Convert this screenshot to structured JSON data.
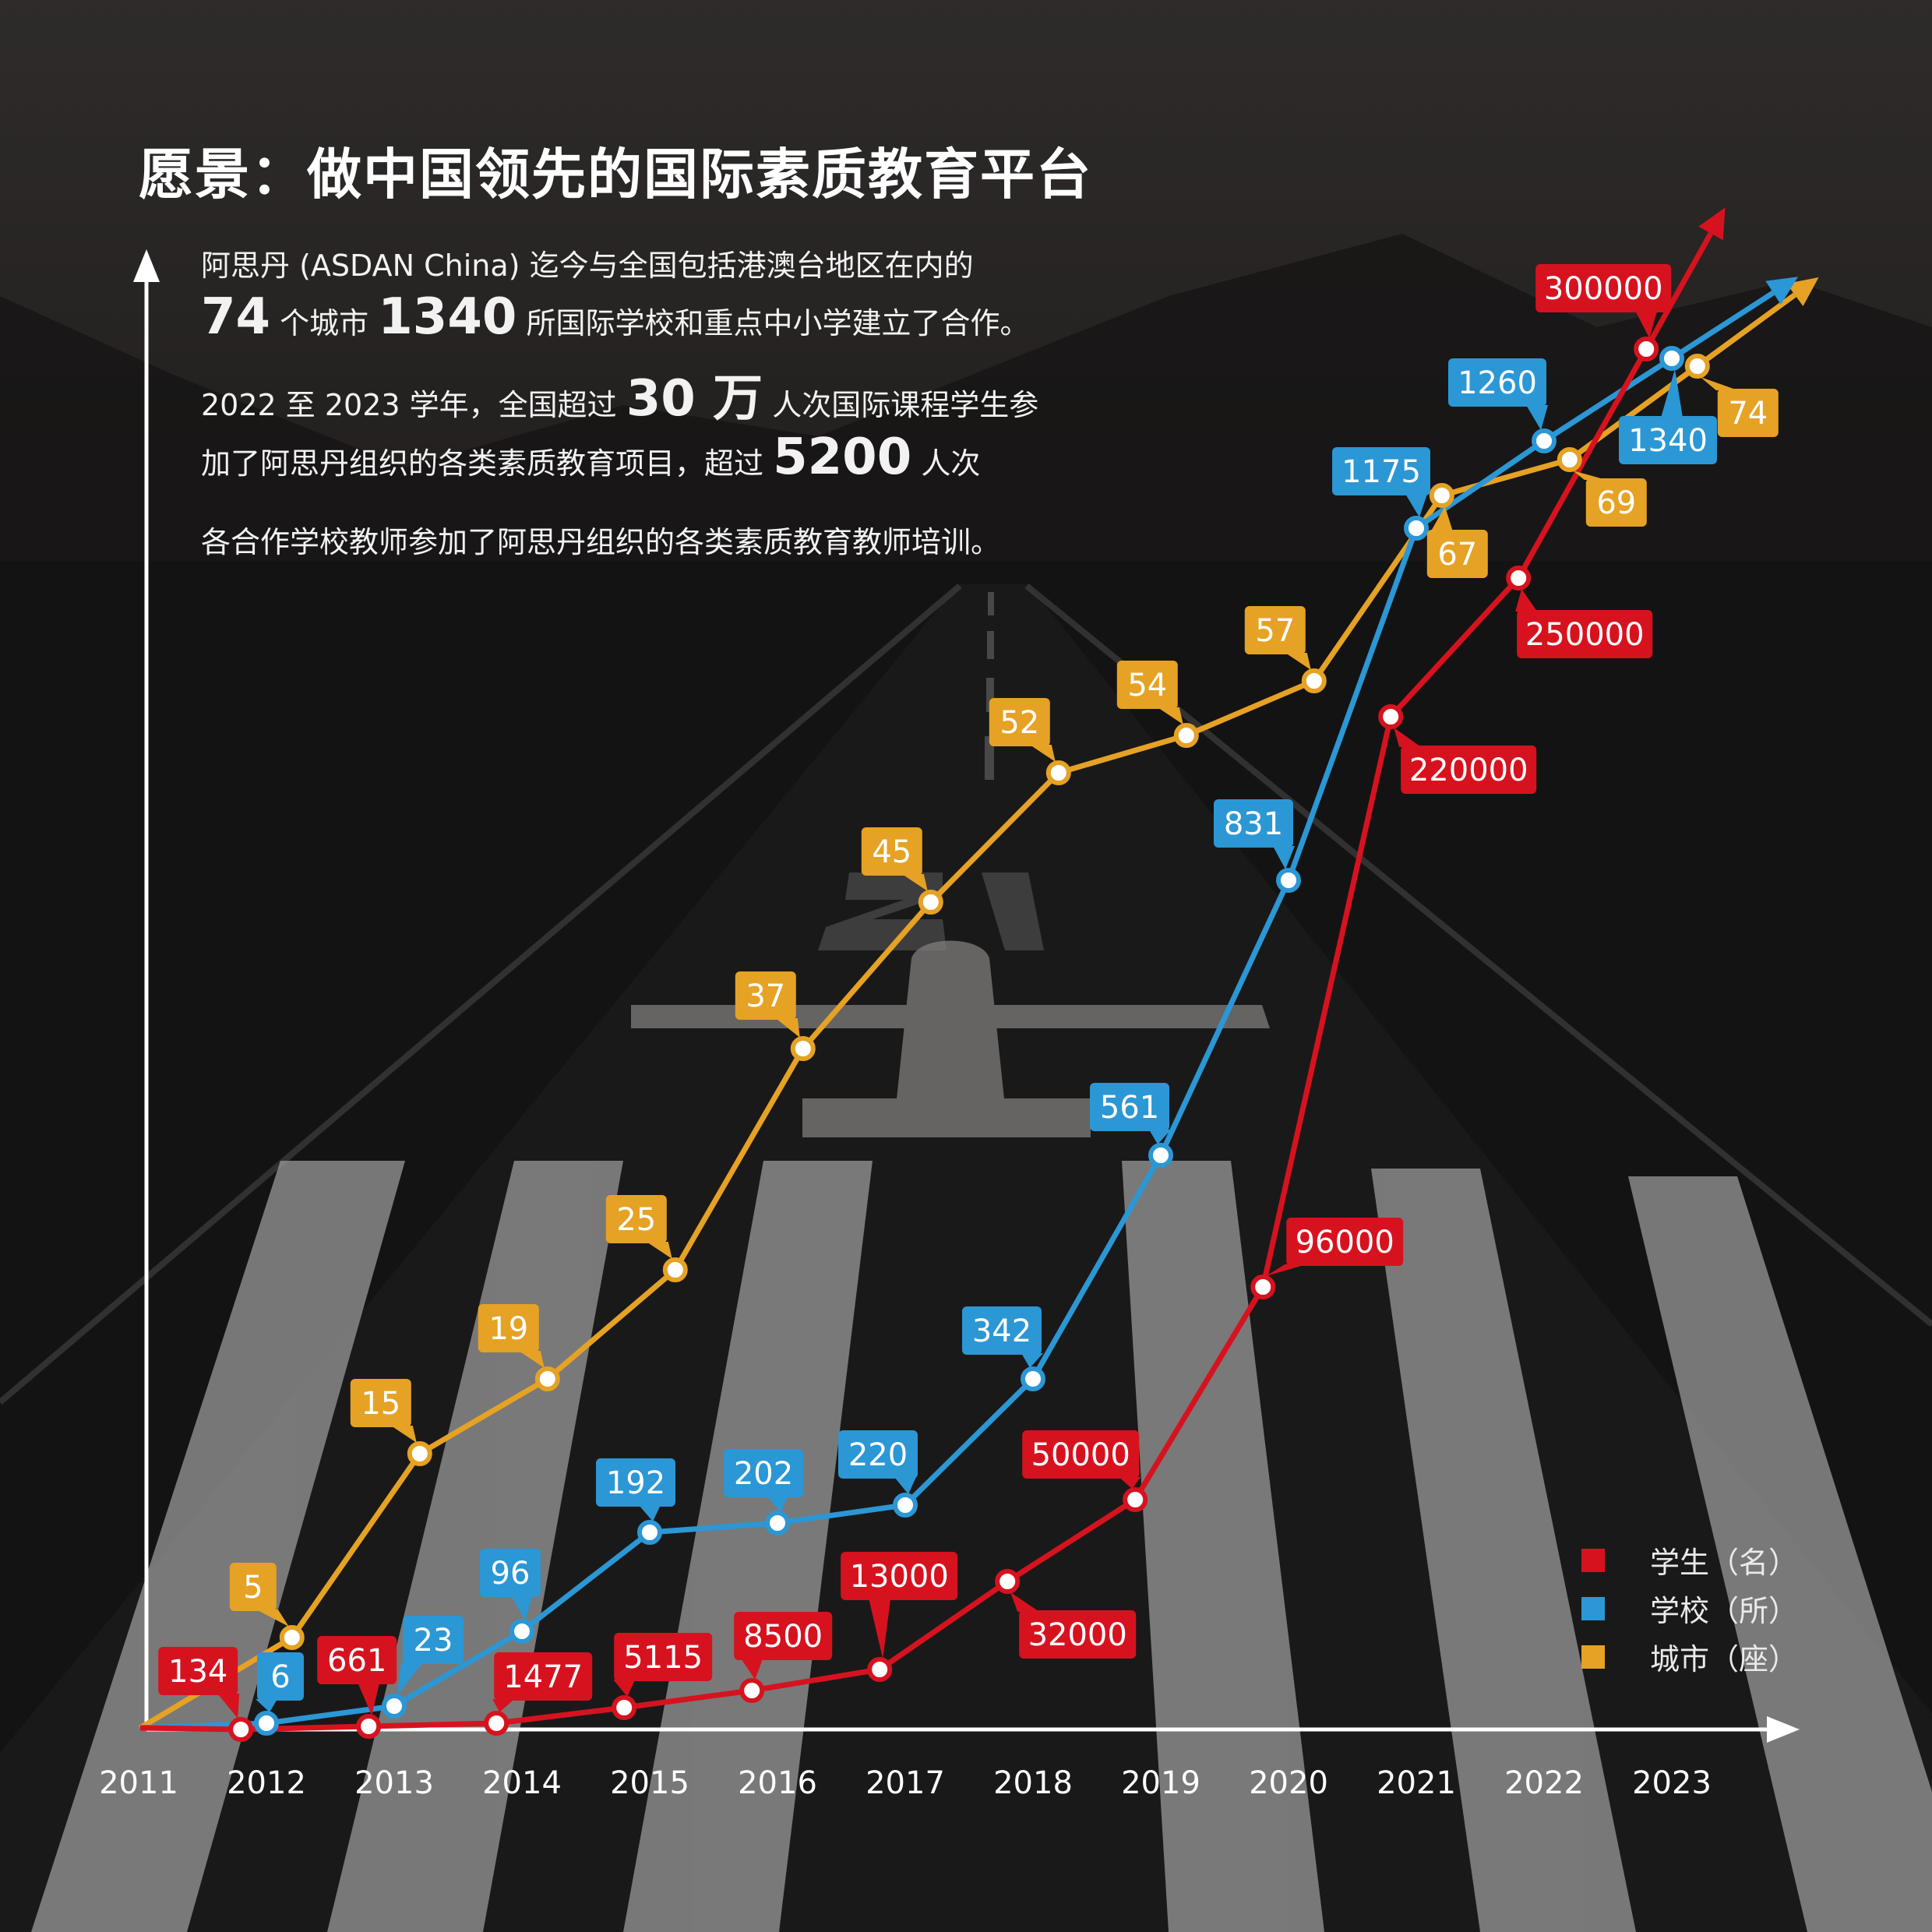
{
  "title": "愿景：做中国领先的国际素质教育平台",
  "intro": {
    "line1": "阿思丹 (ASDAN China) 迄今与全国包括港澳台地区在内的",
    "line2": {
      "n1": "74",
      "t1": "个城市",
      "n2": "1340",
      "t2": "所国际学校和重点中小学建立了合作。"
    },
    "line3": {
      "t1": "2022 至 2023 学年，全国超过",
      "n1": "30 万",
      "t2": "人次国际课程学生参"
    },
    "line4": {
      "t1": "加了阿思丹组织的各类素质教育项目，超过",
      "n1": "5200",
      "t2": "人次"
    },
    "line5": "各合作学校教师参加了阿思丹组织的各类素质教育教师培训。"
  },
  "legend": {
    "students": "学生（名）",
    "schools": "学校（所）",
    "cities": "城市（座）"
  },
  "colors": {
    "students": "#d7121f",
    "schools": "#2b97d5",
    "cities": "#e6a224",
    "axis": "#ffffff"
  },
  "chart_data": {
    "type": "line",
    "x": [
      "2011",
      "2012",
      "2013",
      "2014",
      "2015",
      "2016",
      "2017",
      "2018",
      "2019",
      "2020",
      "2021",
      "2022",
      "2023"
    ],
    "xlabel": "",
    "ylabel": "",
    "series": [
      {
        "name": "学生（名）",
        "key": "students",
        "points": [
          {
            "x": 2011.8,
            "y": 134,
            "label": "134"
          },
          {
            "x": 2012.8,
            "y": 661,
            "label": "661"
          },
          {
            "x": 2013.8,
            "y": 1477,
            "label": "1477"
          },
          {
            "x": 2014.8,
            "y": 5115,
            "label": "5115"
          },
          {
            "x": 2015.8,
            "y": 8500,
            "label": "8500"
          },
          {
            "x": 2016.8,
            "y": 13000,
            "label": "13000"
          },
          {
            "x": 2017.8,
            "y": 32000,
            "label": "32000"
          },
          {
            "x": 2018.8,
            "y": 50000,
            "label": "50000"
          },
          {
            "x": 2019.8,
            "y": 96000,
            "label": "96000"
          },
          {
            "x": 2020.8,
            "y": 220000,
            "label": "220000"
          },
          {
            "x": 2021.8,
            "y": 250000,
            "label": "250000"
          },
          {
            "x": 2022.8,
            "y": 300000,
            "label": "300000"
          }
        ]
      },
      {
        "name": "学校（所）",
        "key": "schools",
        "points": [
          {
            "x": 2012.0,
            "y": 6,
            "label": "6"
          },
          {
            "x": 2013.0,
            "y": 23,
            "label": "23"
          },
          {
            "x": 2014.0,
            "y": 96,
            "label": "96"
          },
          {
            "x": 2015.0,
            "y": 192,
            "label": "192"
          },
          {
            "x": 2016.0,
            "y": 202,
            "label": "202"
          },
          {
            "x": 2017.0,
            "y": 220,
            "label": "220"
          },
          {
            "x": 2018.0,
            "y": 342,
            "label": "342"
          },
          {
            "x": 2019.0,
            "y": 561,
            "label": "561"
          },
          {
            "x": 2020.0,
            "y": 831,
            "label": "831"
          },
          {
            "x": 2021.0,
            "y": 1175,
            "label": "1175"
          },
          {
            "x": 2022.0,
            "y": 1260,
            "label": "1260"
          },
          {
            "x": 2023.0,
            "y": 1340,
            "label": "1340"
          }
        ]
      },
      {
        "name": "城市（座）",
        "key": "cities",
        "points": [
          {
            "x": 2012.2,
            "y": 5,
            "label": "5"
          },
          {
            "x": 2013.2,
            "y": 15,
            "label": "15"
          },
          {
            "x": 2014.2,
            "y": 19,
            "label": "19"
          },
          {
            "x": 2015.2,
            "y": 25,
            "label": "25"
          },
          {
            "x": 2016.2,
            "y": 37,
            "label": "37"
          },
          {
            "x": 2017.2,
            "y": 45,
            "label": "45"
          },
          {
            "x": 2018.2,
            "y": 52,
            "label": "52"
          },
          {
            "x": 2019.2,
            "y": 54,
            "label": "54"
          },
          {
            "x": 2020.2,
            "y": 57,
            "label": "57"
          },
          {
            "x": 2021.2,
            "y": 67,
            "label": "67"
          },
          {
            "x": 2022.2,
            "y": 69,
            "label": "69"
          },
          {
            "x": 2023.2,
            "y": 74,
            "label": "74"
          }
        ]
      }
    ],
    "grid": false,
    "legend_position": "bottom-right",
    "note": "series are plotted on independent (non-linear) vertical scales; markers labelled with callout tags"
  }
}
